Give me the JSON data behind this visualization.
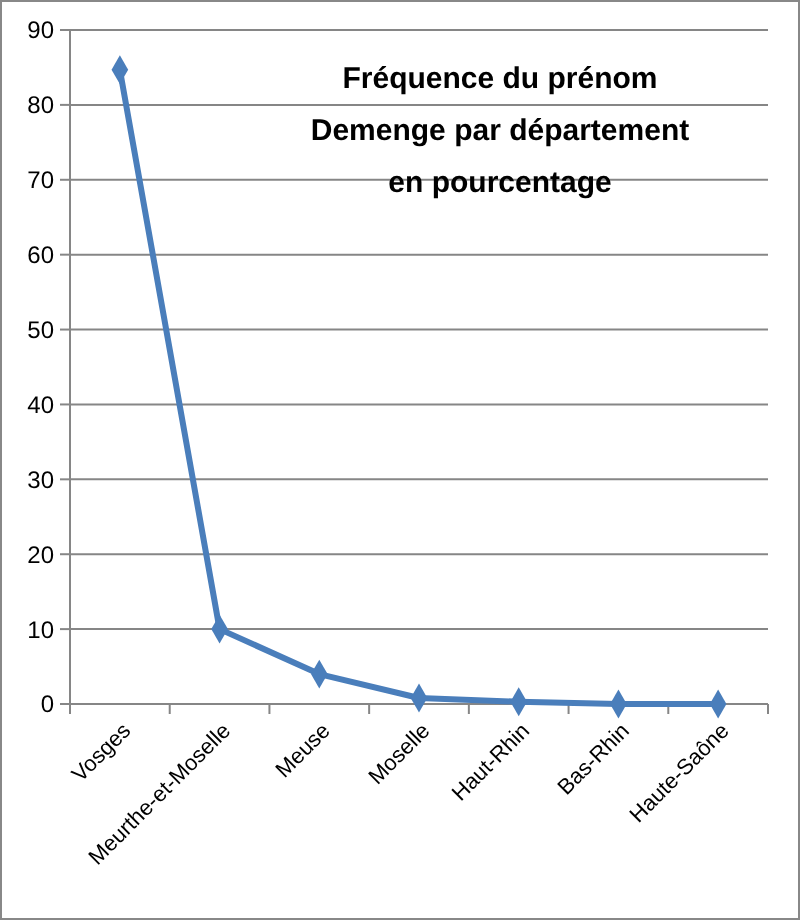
{
  "chart_data": {
    "type": "line",
    "title": "Fréquence du prénom\nDemenge par département\nen pourcentage",
    "categories": [
      "Vosges",
      "Meurthe-et-Moselle",
      "Meuse",
      "Moselle",
      "Haut-Rhin",
      "Bas-Rhin",
      "Haute-Saône"
    ],
    "series": [
      {
        "color": "#4a7ebb",
        "values": [
          84.7,
          10,
          4,
          0.8,
          0.3,
          0,
          0
        ]
      }
    ],
    "ylim": [
      0,
      90
    ],
    "yticks": [
      0,
      10,
      20,
      30,
      40,
      50,
      60,
      70,
      80,
      90
    ],
    "grid": "y",
    "marker": "diamond",
    "line_style": "solid"
  }
}
